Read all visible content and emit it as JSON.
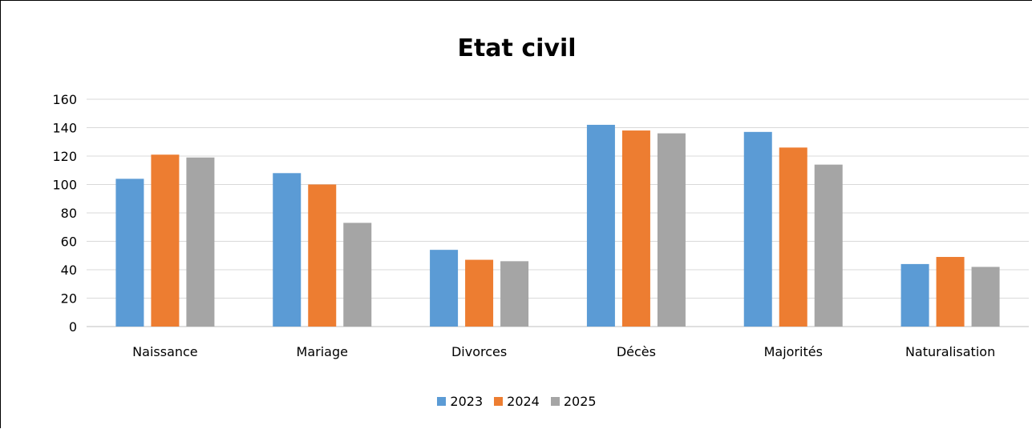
{
  "chart_data": {
    "type": "bar",
    "title": "Etat civil",
    "xlabel": "",
    "ylabel": "",
    "categories": [
      "Naissance",
      "Mariage",
      "Divorces",
      "Décès",
      "Majorités",
      "Naturalisation"
    ],
    "series": [
      {
        "name": "2023",
        "color": "#5B9BD5",
        "values": [
          104,
          108,
          54,
          142,
          137,
          44
        ]
      },
      {
        "name": "2024",
        "color": "#ED7D31",
        "values": [
          121,
          100,
          47,
          138,
          126,
          49
        ]
      },
      {
        "name": "2025",
        "color": "#A5A5A5",
        "values": [
          119,
          73,
          46,
          136,
          114,
          42
        ]
      }
    ],
    "ylim": [
      0,
      160
    ],
    "yticks": [
      0,
      20,
      40,
      60,
      80,
      100,
      120,
      140,
      160
    ],
    "grid": true,
    "legend_position": "bottom"
  }
}
